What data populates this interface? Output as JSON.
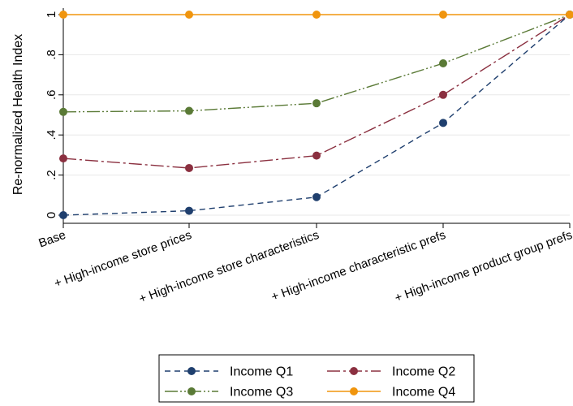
{
  "chart_data": {
    "type": "line",
    "categories": [
      "Base",
      "+ High-income store prices",
      "+ High-income store characteristics",
      "+ High-income characteristic prefs",
      "+ High-income product group prefs"
    ],
    "ylabel": "Re-normalized Health Index",
    "ylim": [
      0,
      1
    ],
    "yticks": [
      {
        "value": 0,
        "label": "0"
      },
      {
        "value": 0.2,
        "label": ".2"
      },
      {
        "value": 0.4,
        "label": ".4"
      },
      {
        "value": 0.6,
        "label": ".6"
      },
      {
        "value": 0.8,
        "label": ".8"
      },
      {
        "value": 1,
        "label": "1"
      }
    ],
    "grid": "horizontal",
    "legend_position": "bottom",
    "series": [
      {
        "name": "Income Q1",
        "color": "#1f3f6e",
        "dash": "7,5",
        "values": [
          0.0,
          0.022,
          0.09,
          0.46,
          1.0
        ]
      },
      {
        "name": "Income Q2",
        "color": "#8b3040",
        "dash": "16,4,3,4",
        "values": [
          0.283,
          0.235,
          0.297,
          0.6,
          1.0
        ]
      },
      {
        "name": "Income Q3",
        "color": "#5a7a36",
        "dash": "16,3,2,3,2,3",
        "values": [
          0.515,
          0.52,
          0.558,
          0.757,
          1.0
        ]
      },
      {
        "name": "Income Q4",
        "color": "#f0950e",
        "dash": "",
        "values": [
          1.0,
          1.0,
          1.0,
          1.0,
          1.0
        ]
      }
    ]
  }
}
